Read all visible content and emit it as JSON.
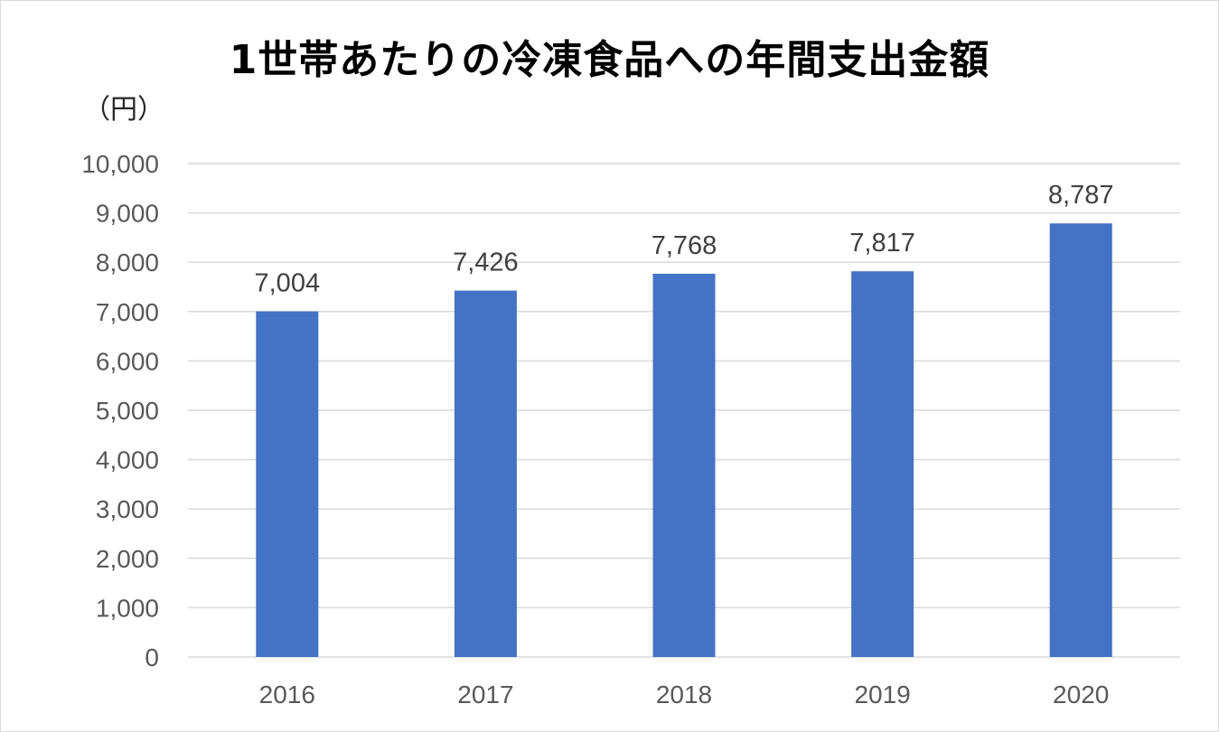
{
  "chart_data": {
    "type": "bar",
    "title": "1世帯あたりの冷凍食品への年間支出金額",
    "ylabel": "（円）",
    "xlabel": "",
    "categories": [
      "2016",
      "2017",
      "2018",
      "2019",
      "2020"
    ],
    "values": [
      7004,
      7426,
      7768,
      7817,
      8787
    ],
    "data_labels": [
      "7,004",
      "7,426",
      "7,768",
      "7,817",
      "8,787"
    ],
    "ylim": [
      0,
      10000
    ],
    "yticks": [
      0,
      1000,
      2000,
      3000,
      4000,
      5000,
      6000,
      7000,
      8000,
      9000,
      10000
    ],
    "ytick_labels": [
      "0",
      "1,000",
      "2,000",
      "3,000",
      "4,000",
      "5,000",
      "6,000",
      "7,000",
      "8,000",
      "9,000",
      "10,000"
    ],
    "grid": true,
    "legend": "none",
    "colors": {
      "bar": "#4472c4",
      "grid": "#d9d9d9",
      "tick_text": "#595959",
      "label_text": "#404040"
    }
  }
}
